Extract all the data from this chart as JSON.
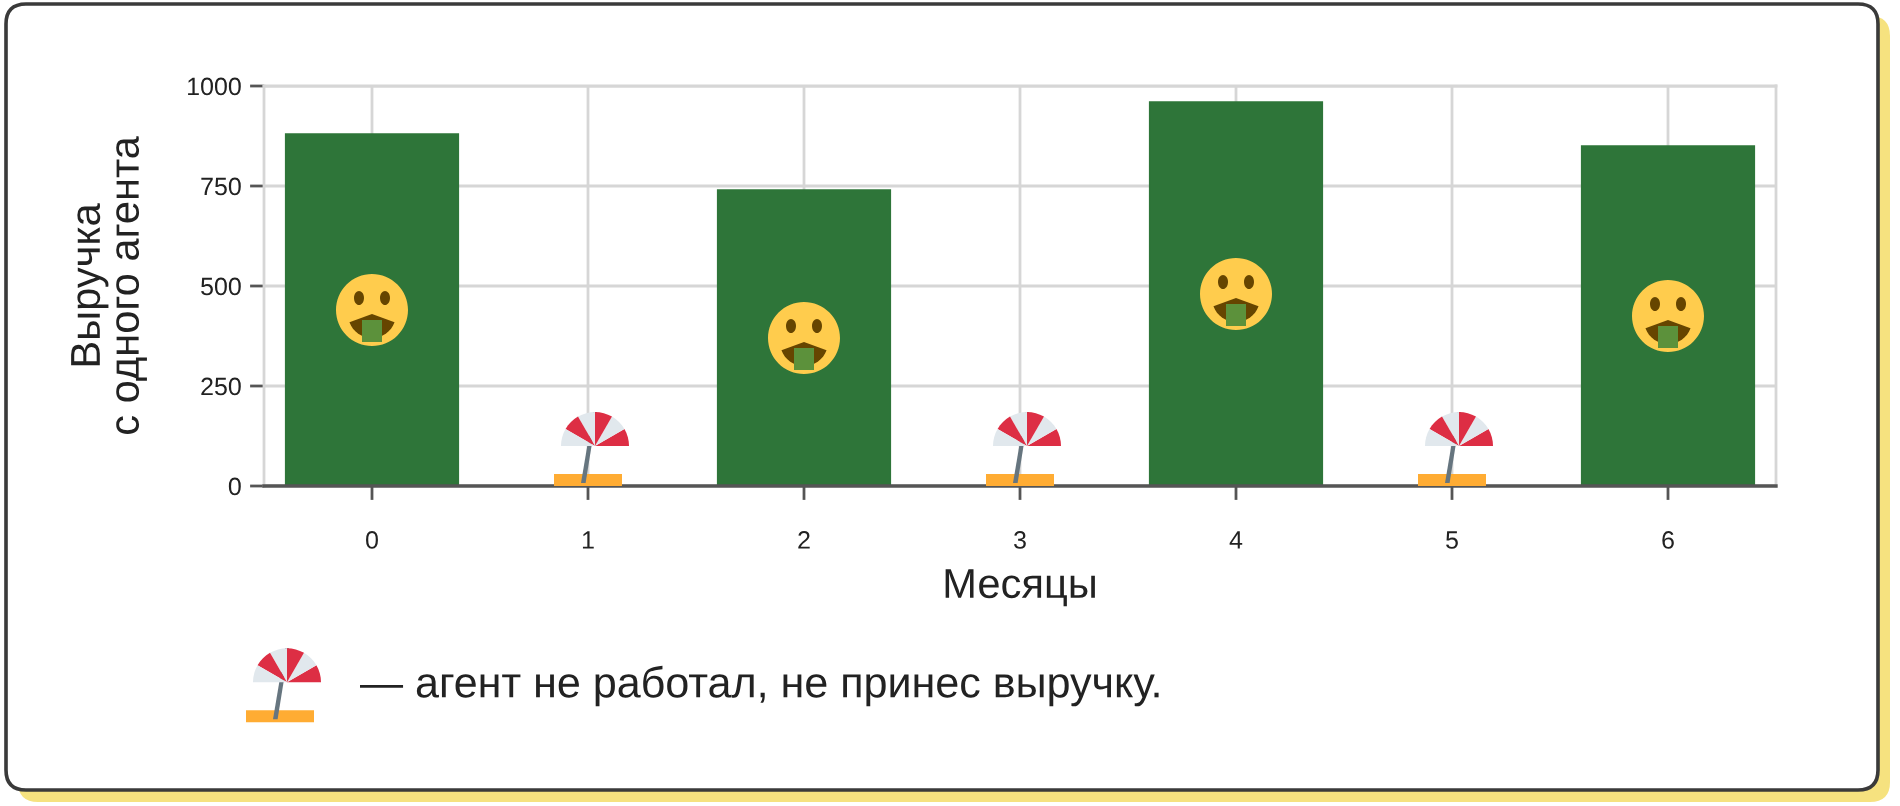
{
  "chart_data": {
    "type": "bar",
    "xlabel": "Месяцы",
    "ylabel": "Выручка\nс одного агента",
    "x": [
      0,
      1,
      2,
      3,
      4,
      5,
      6
    ],
    "values": [
      880,
      0,
      740,
      0,
      960,
      0,
      850
    ],
    "color": "#2e7539",
    "xlim": [
      -0.5,
      6.5
    ],
    "xticks": [
      0,
      1,
      2,
      3,
      4,
      5,
      6
    ],
    "ylim": [
      0,
      1000
    ],
    "yticks": [
      0,
      250,
      500,
      750,
      1000
    ],
    "grid": true,
    "annotations": [
      "— агент не работал, не принес выручку."
    ]
  }
}
